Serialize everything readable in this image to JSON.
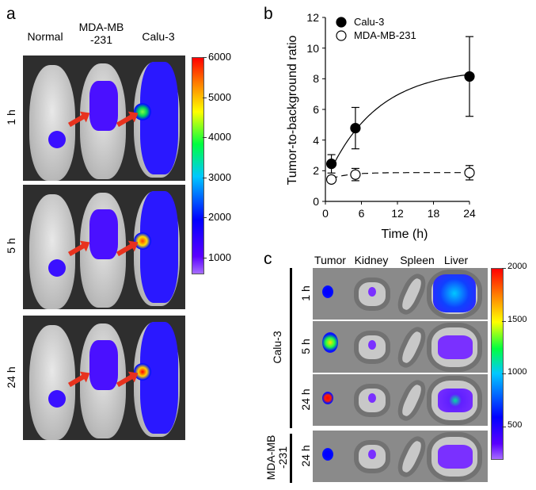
{
  "panel_a": {
    "label": "a",
    "columns": [
      "Normal",
      "MDA-MB\n-231",
      "Calu-3"
    ],
    "rows": [
      "1 h",
      "5 h",
      "24 h"
    ],
    "colorbar": {
      "ticks": [
        "6000",
        "5000",
        "4000",
        "3000",
        "2000",
        "1000"
      ],
      "colormap": [
        "#8a2be2",
        "#0000ff",
        "#00ffff",
        "#00ff00",
        "#ffff00",
        "#ff0000"
      ]
    },
    "arrow_color": "#e8321e"
  },
  "panel_b": {
    "label": "b"
  },
  "panel_c": {
    "label": "c",
    "columns": [
      "Tumor",
      "Kidney",
      "Spleen",
      "Liver"
    ],
    "groups": [
      {
        "name": "Calu-3",
        "rows": [
          "1 h",
          "5 h",
          "24 h"
        ]
      },
      {
        "name": "MDA-MB\n-231",
        "rows": [
          "24 h"
        ]
      }
    ],
    "colorbar": {
      "ticks": [
        "2000",
        "1500",
        "1000",
        "500"
      ]
    }
  },
  "chart_data": {
    "type": "scatter",
    "xlabel": "Time (h)",
    "ylabel": "Tumor-to-background ratio",
    "xlim": [
      0,
      24
    ],
    "ylim": [
      0,
      12
    ],
    "xticks": [
      "0",
      "6",
      "12",
      "18",
      "24"
    ],
    "yticks": [
      "0",
      "2",
      "4",
      "6",
      "8",
      "10",
      "12"
    ],
    "grid": false,
    "legend": "top-left",
    "series": [
      {
        "name": "Calu-3",
        "marker": "filled-circle",
        "line": "solid",
        "x": [
          1,
          5,
          24
        ],
        "y": [
          2.45,
          4.78,
          8.15
        ],
        "error": [
          0.6,
          1.35,
          2.6
        ]
      },
      {
        "name": "MDA-MB-231",
        "marker": "open-circle",
        "line": "dashed",
        "x": [
          1,
          5,
          24
        ],
        "y": [
          1.43,
          1.75,
          1.87
        ],
        "error": [
          0.15,
          0.4,
          0.47
        ]
      }
    ]
  }
}
